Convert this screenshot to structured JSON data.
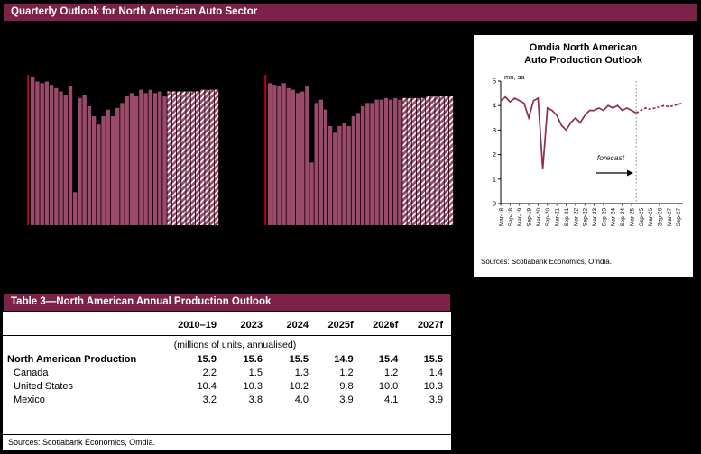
{
  "page": {
    "title": "Quarterly Outlook for North American Auto Sector"
  },
  "colors": {
    "maroon": "#7c2147",
    "bar_fill": "#9c4a6a",
    "line": "#8e2d52",
    "accent_red": "#d0021b",
    "divider": "#808080"
  },
  "chart_data": [
    {
      "type": "bar",
      "name": "quarterly-bar-chart-left",
      "ylim": [
        0,
        4.8
      ],
      "forecast_start_index": 29,
      "values": [
        4.5,
        4.35,
        4.3,
        4.35,
        4.25,
        4.15,
        4.05,
        3.95,
        4.2,
        1.0,
        3.85,
        3.95,
        3.6,
        3.3,
        3.05,
        3.3,
        3.5,
        3.3,
        3.55,
        3.7,
        3.9,
        4.0,
        3.9,
        4.1,
        4.0,
        4.1,
        4.0,
        4.05,
        3.9,
        4.05,
        4.05,
        4.05,
        4.05,
        4.05,
        4.05,
        4.05,
        4.1,
        4.1,
        4.1,
        4.1
      ]
    },
    {
      "type": "bar",
      "name": "quarterly-bar-chart-right",
      "ylim": [
        0,
        4.8
      ],
      "forecast_start_index": 29,
      "values": [
        4.3,
        4.25,
        4.2,
        4.3,
        4.15,
        4.1,
        4.0,
        4.05,
        4.2,
        1.9,
        3.7,
        3.8,
        3.5,
        3.0,
        2.8,
        3.0,
        3.1,
        3.0,
        3.3,
        3.4,
        3.6,
        3.7,
        3.7,
        3.8,
        3.8,
        3.85,
        3.8,
        3.85,
        3.8,
        3.85,
        3.85,
        3.85,
        3.85,
        3.85,
        3.9,
        3.9,
        3.9,
        3.9,
        3.9,
        3.9
      ]
    },
    {
      "type": "line",
      "name": "omdia-north-american-auto-production-outlook",
      "title": "Omdia North American Auto Production Outlook",
      "title_line1": "Omdia North American",
      "title_line2": "Auto Production Outlook",
      "ylabel": "mn, sa",
      "ylim": [
        0,
        5
      ],
      "y_ticks": [
        0,
        1,
        2,
        3,
        4,
        5
      ],
      "x_tick_labels": [
        "Mar-18",
        "Sep-18",
        "Mar-19",
        "Sep-19",
        "Mar-20",
        "Sep-20",
        "Mar-21",
        "Sep-21",
        "Mar-22",
        "Sep-22",
        "Mar-23",
        "Sep-23",
        "Mar-24",
        "Sep-24",
        "Mar-25",
        "Sep-25",
        "Mar-26",
        "Sep-26",
        "Mar-27",
        "Sep-27"
      ],
      "forecast_start_index": 29,
      "values": [
        4.2,
        4.35,
        4.15,
        4.3,
        4.2,
        4.1,
        3.5,
        4.2,
        4.3,
        1.4,
        3.9,
        3.8,
        3.6,
        3.2,
        3.0,
        3.3,
        3.5,
        3.3,
        3.6,
        3.8,
        3.8,
        3.9,
        3.8,
        4.0,
        3.9,
        4.0,
        3.8,
        3.9,
        3.8,
        3.7,
        3.8,
        3.9,
        3.85,
        3.9,
        3.95,
        4.0,
        3.95,
        4.0,
        4.05,
        4.1
      ],
      "annotations": {
        "forecast": "forecast"
      },
      "sources": "Sources: Scotiabank Economics, Omdia."
    }
  ],
  "table": {
    "title": "Table 3—North American Annual Production Outlook",
    "columns": [
      "2010–19",
      "2023",
      "2024",
      "2025f",
      "2026f",
      "2027f"
    ],
    "units_note": "(millions of units, annualised)",
    "rows": [
      {
        "label": "North American Production",
        "bold": true,
        "values": [
          "15.9",
          "15.6",
          "15.5",
          "14.9",
          "15.4",
          "15.5"
        ]
      },
      {
        "label": "Canada",
        "bold": false,
        "values": [
          "2.2",
          "1.5",
          "1.3",
          "1.2",
          "1.2",
          "1.4"
        ]
      },
      {
        "label": "United States",
        "bold": false,
        "values": [
          "10.4",
          "10.3",
          "10.2",
          "9.8",
          "10.0",
          "10.3"
        ]
      },
      {
        "label": "Mexico",
        "bold": false,
        "values": [
          "3.2",
          "3.8",
          "4.0",
          "3.9",
          "4.1",
          "3.9"
        ]
      }
    ],
    "sources": "Sources: Scotiabank Economics, Omdia."
  }
}
